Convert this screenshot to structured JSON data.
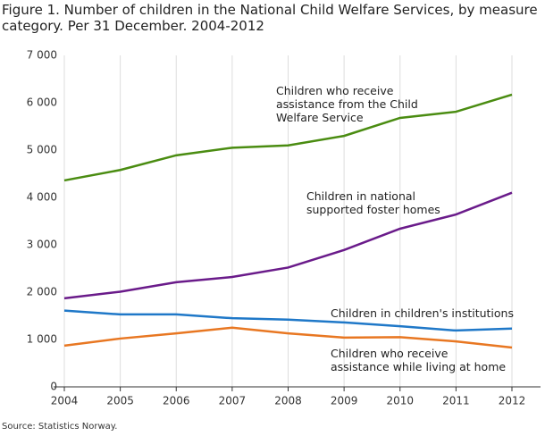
{
  "chart_data": {
    "type": "line",
    "title": "Figure 1. Number of children in the National Child Welfare Services, by measure category. Per 31 December. 2004-2012",
    "source": "Source: Statistics Norway.",
    "categories": [
      "2004",
      "2005",
      "2006",
      "2007",
      "2008",
      "2009",
      "2010",
      "2011",
      "2012"
    ],
    "series": [
      {
        "name": "Children who receive assistance from the Child Welfare Service",
        "color": "#4a8c11",
        "values": [
          4360,
          4580,
          4890,
          5050,
          5100,
          5300,
          5680,
          5810,
          6170
        ]
      },
      {
        "name": "Children in national supported foster homes",
        "color": "#6a1b8a",
        "values": [
          1870,
          2010,
          2210,
          2320,
          2520,
          2890,
          3340,
          3640,
          4100
        ]
      },
      {
        "name": "Children in children's institutions",
        "color": "#1f78c8",
        "values": [
          1610,
          1530,
          1530,
          1450,
          1420,
          1360,
          1280,
          1190,
          1230
        ]
      },
      {
        "name": "Children who receive assistance while living at home",
        "color": "#e87722",
        "values": [
          870,
          1020,
          1130,
          1250,
          1130,
          1040,
          1050,
          960,
          830
        ]
      }
    ],
    "ylim": [
      0,
      7000
    ],
    "yticks": [
      0,
      {
        "value": 1000,
        "label": "1 000"
      },
      {
        "value": 2000,
        "label": "2 000"
      },
      {
        "value": 3000,
        "label": "3 000"
      },
      {
        "value": 4000,
        "label": "4 000"
      },
      {
        "value": 5000,
        "label": "5 000"
      },
      {
        "value": 6000,
        "label": "6 000"
      },
      {
        "value": 7000,
        "label": "7 000"
      }
    ],
    "grid": true
  }
}
